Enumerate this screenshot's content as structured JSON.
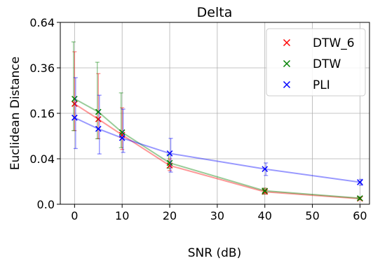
{
  "chart_data": {
    "type": "line",
    "title": "Delta",
    "xlabel": "SNR (dB)",
    "ylabel": "Euclidean Distance",
    "scale": "sqrt",
    "x_ticks": [
      "0",
      "10",
      "20",
      "30",
      "40",
      "50",
      "60"
    ],
    "y_ticks": [
      "0.0",
      "0.04",
      "0.16",
      "0.36",
      "0.64"
    ],
    "xlim": [
      -3,
      62
    ],
    "ylim": [
      0,
      0.64
    ],
    "grid": true,
    "legend_position": "top-right",
    "x": [
      0,
      5,
      10,
      20,
      40,
      60
    ],
    "series": [
      {
        "name": "DTW_6",
        "color": "#ff0000",
        "values": [
          0.195,
          0.14,
          0.093,
          0.029,
          0.003,
          0.0006
        ],
        "err_low": [
          0.105,
          0.083,
          0.058,
          0.022,
          0.002,
          0.0004
        ],
        "err_high": [
          0.45,
          0.33,
          0.18,
          0.04,
          0.005,
          0.001
        ]
      },
      {
        "name": "DTW",
        "color": "#008000",
        "values": [
          0.215,
          0.165,
          0.1,
          0.033,
          0.0035,
          0.0007
        ],
        "err_low": [
          0.105,
          0.083,
          0.062,
          0.025,
          0.002,
          0.0005
        ],
        "err_high": [
          0.51,
          0.39,
          0.24,
          0.048,
          0.005,
          0.001
        ]
      },
      {
        "name": "PLI",
        "color": "#0000ff",
        "values": [
          0.145,
          0.11,
          0.085,
          0.05,
          0.024,
          0.0094
        ],
        "err_low": [
          0.06,
          0.049,
          0.052,
          0.02,
          0.016,
          0.007
        ],
        "err_high": [
          0.31,
          0.23,
          0.175,
          0.084,
          0.033,
          0.012
        ]
      }
    ]
  }
}
